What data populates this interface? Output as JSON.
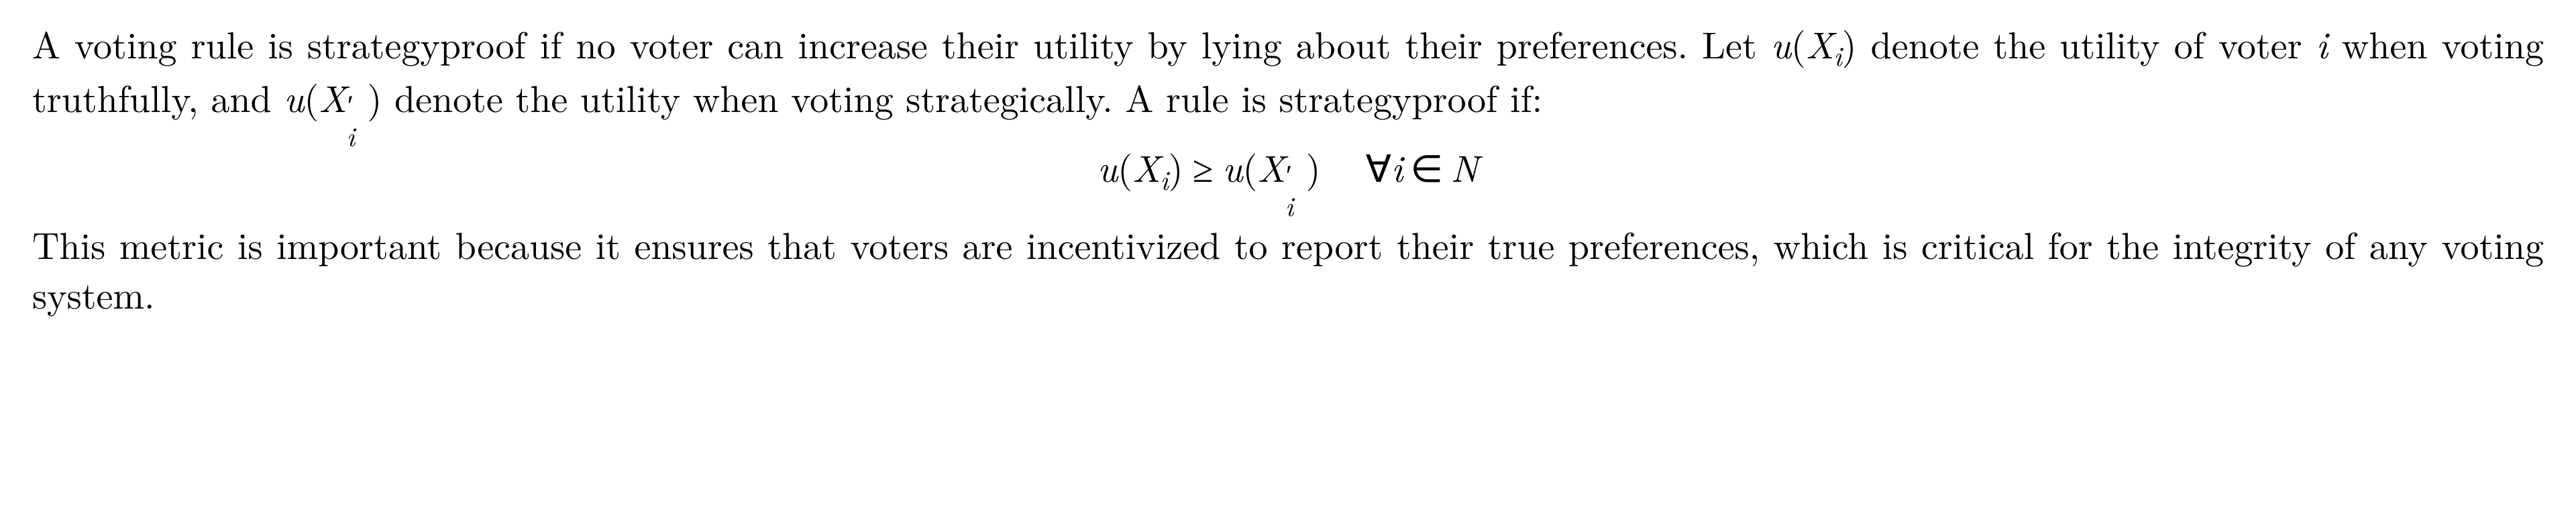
{
  "typography": {
    "font_family": "Computer Modern / Latin Modern Roman (serif)",
    "body_fontsize_pt": 42,
    "line_height": 1.32,
    "text_color": "#000000",
    "background_color": "#ffffff",
    "justification": "full"
  },
  "para1": {
    "t1": "A voting rule is strategyproof if no voter can increase their utility by lying about their preferences. Let ",
    "u1": "u",
    "lp1": "(",
    "X1": "X",
    "i1": "i",
    "rp1": ")",
    "t2": " denote the utility of voter ",
    "ivar": "i",
    "t3": " when voting truthfully, and ",
    "u2": "u",
    "lp2": "(",
    "X2": "X",
    "prime2": "′",
    "i2": "i",
    "rp2": ")",
    "t4": " denote the utility when voting strategically. A rule is strategyproof if:"
  },
  "equation": {
    "u_l": "u",
    "lp_l": "(",
    "X_l": "X",
    "i_l": "i",
    "rp_l": ")",
    "rel": "≥",
    "u_r": "u",
    "lp_r": "(",
    "X_r": "X",
    "prime_r": "′",
    "i_r": "i",
    "rp_r": ")",
    "forall": "∀",
    "qi": "i",
    "in": "∈",
    "N": "N"
  },
  "para2": {
    "t": "This metric is important because it ensures that voters are incentivized to report their true preferences, which is critical for the integrity of any voting system."
  }
}
